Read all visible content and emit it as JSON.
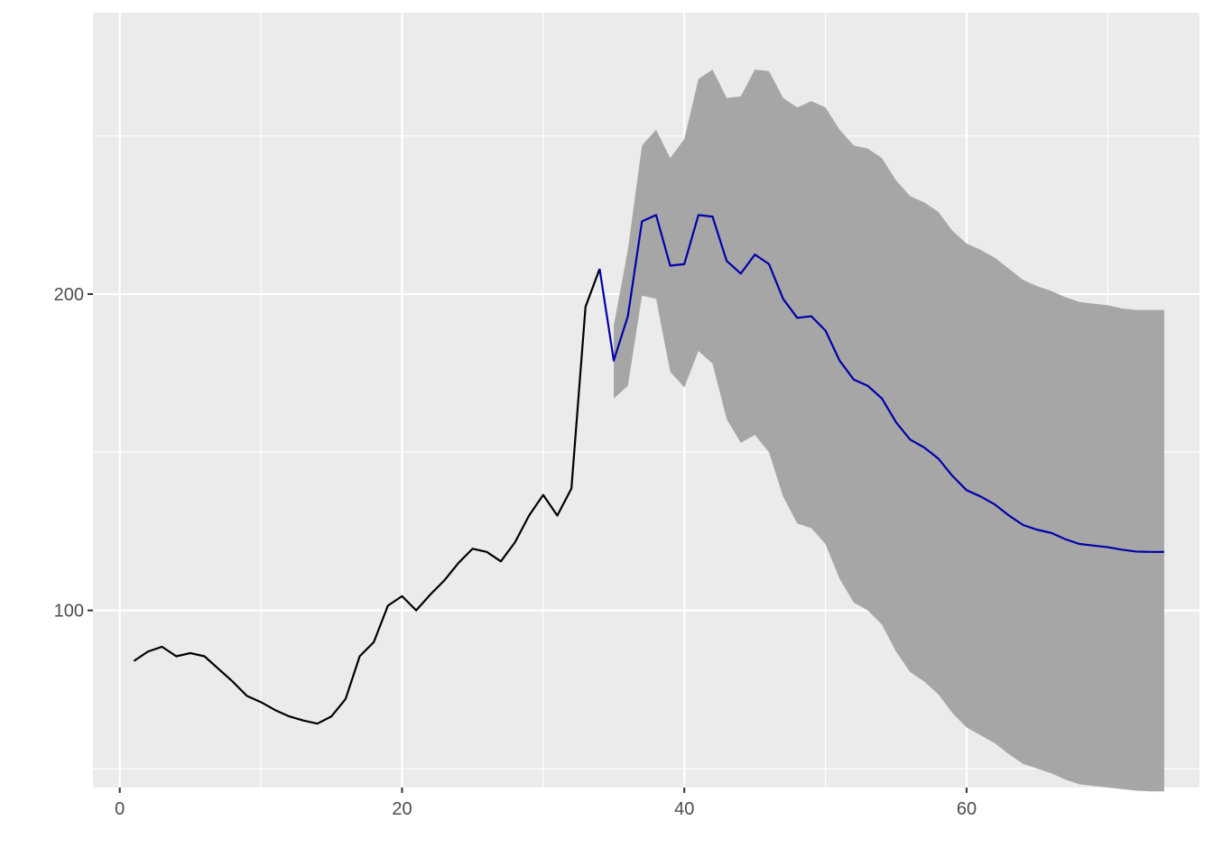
{
  "chart_data": {
    "type": "line",
    "title": "",
    "xlabel": "",
    "ylabel": "",
    "xlim": [
      -1.9,
      76.5
    ],
    "ylim": [
      44,
      289
    ],
    "x_ticks": [
      0,
      20,
      40,
      60
    ],
    "x_tick_labels": [
      "0",
      "20",
      "40",
      "60"
    ],
    "y_ticks": [
      100,
      200
    ],
    "y_tick_labels": [
      "100",
      "200"
    ],
    "grid": true,
    "panel_background": "#ebebeb",
    "colors": {
      "history": "#000000",
      "forecast": "#0000aa",
      "interval": "#a6a6a6",
      "grid": "#ffffff",
      "tick_label": "#4d4d4d"
    },
    "series": [
      {
        "role": "history",
        "x": [
          1,
          2,
          3,
          4,
          5,
          6,
          7,
          8,
          9,
          10,
          11,
          12,
          13,
          14,
          15,
          16,
          17,
          18,
          19,
          20,
          21,
          22,
          23,
          24,
          25,
          26,
          27,
          28,
          29,
          30,
          31,
          32,
          33,
          34
        ],
        "values": [
          84,
          87,
          88.5,
          85.5,
          86.5,
          85.5,
          81.5,
          77.5,
          73,
          71,
          68.5,
          66.5,
          65.2,
          64.2,
          66.5,
          72,
          85.5,
          90,
          101.5,
          104.5,
          100,
          105,
          109.5,
          115,
          119.5,
          118.5,
          115.5,
          121.5,
          130,
          136.5,
          130,
          138.5,
          196,
          208
        ]
      },
      {
        "role": "forecast",
        "x": [
          34,
          35,
          36,
          37,
          38,
          39,
          40,
          41,
          42,
          43,
          44,
          45,
          46,
          47,
          48,
          49,
          50,
          51,
          52,
          53,
          54,
          55,
          56,
          57,
          58,
          59,
          60,
          61,
          62,
          63,
          64,
          65,
          66,
          67,
          68,
          69,
          70,
          71,
          72,
          73,
          74
        ],
        "values": [
          208,
          179,
          193,
          223,
          225,
          209,
          209.5,
          225,
          224.5,
          210.5,
          206.5,
          212.5,
          209.5,
          198.5,
          192.5,
          193,
          188.5,
          179,
          173,
          171,
          167,
          159.5,
          154,
          151.5,
          148,
          142.5,
          138,
          136,
          133.5,
          130,
          127,
          125.5,
          124.5,
          122.5,
          121,
          120.5,
          120,
          119.2,
          118.6,
          118.5,
          118.5
        ]
      },
      {
        "role": "interval",
        "x": [
          35,
          36,
          37,
          38,
          39,
          40,
          41,
          42,
          43,
          44,
          45,
          46,
          47,
          48,
          49,
          50,
          51,
          52,
          53,
          54,
          55,
          56,
          57,
          58,
          59,
          60,
          61,
          62,
          63,
          64,
          65,
          66,
          67,
          68,
          69,
          70,
          71,
          72,
          73,
          74
        ],
        "upper": [
          190,
          214,
          247,
          252,
          243,
          249,
          268,
          271,
          262,
          262.5,
          271,
          270.5,
          262,
          259,
          261,
          259,
          252,
          247,
          246,
          243,
          236,
          231,
          229,
          226,
          220,
          216,
          214,
          211.5,
          208,
          204.5,
          202.5,
          201,
          199,
          197.5,
          197,
          196.5,
          195.5,
          195,
          195,
          195
        ],
        "lower": [
          167,
          171,
          199.5,
          198.5,
          175.5,
          170.5,
          182,
          178,
          160.5,
          153,
          155.5,
          150,
          136,
          127.5,
          126,
          121,
          110,
          102.5,
          100,
          95.5,
          87,
          80.5,
          77.5,
          73.5,
          67.5,
          63,
          60.5,
          58,
          54.5,
          51.5,
          50,
          48.5,
          46.5,
          45,
          44.5,
          44,
          43.5,
          43,
          42.8,
          42.8
        ]
      }
    ]
  }
}
